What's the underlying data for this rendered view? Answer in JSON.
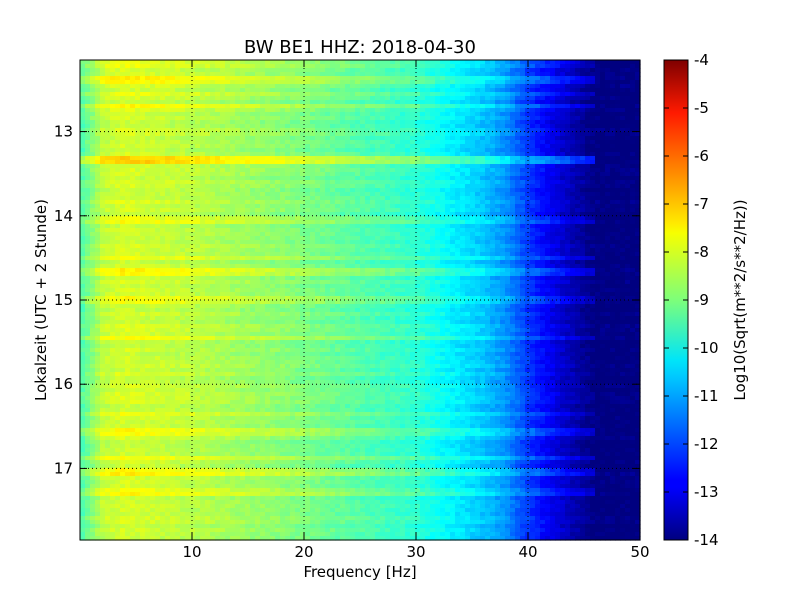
{
  "chart_data": {
    "type": "heatmap",
    "title": "BW BE1 HHZ: 2018-04-30",
    "xlabel": "Frequency [Hz]",
    "ylabel": "Lokalzeit (UTC + 2 Stunde)",
    "xlim": [
      0,
      50
    ],
    "ylim": [
      12.15,
      17.85
    ],
    "y_inverted": true,
    "x_ticks": [
      "10",
      "20",
      "30",
      "40",
      "50"
    ],
    "x_tick_values": [
      10,
      20,
      30,
      40,
      50
    ],
    "y_ticks": [
      "13",
      "14",
      "15",
      "16",
      "17"
    ],
    "y_tick_values": [
      13,
      14,
      15,
      16,
      17
    ],
    "grid": true,
    "colormap": "jet",
    "colorbar": {
      "label": "Log10(Sqrt(m**2/s**2/Hz))",
      "min": -14,
      "max": -4,
      "ticks": [
        "-4",
        "-5",
        "-6",
        "-7",
        "-8",
        "-9",
        "-10",
        "-11",
        "-12",
        "-13",
        "-14"
      ],
      "tick_values": [
        -4,
        -5,
        -6,
        -7,
        -8,
        -9,
        -10,
        -11,
        -12,
        -13,
        -14
      ]
    },
    "spectral_profile": {
      "frequency_hz": [
        0,
        2,
        5,
        10,
        15,
        20,
        25,
        30,
        33,
        36,
        38,
        40,
        42,
        44,
        46,
        48,
        50
      ],
      "level": [
        -8.8,
        -8.0,
        -8.2,
        -8.4,
        -8.7,
        -9.0,
        -9.4,
        -9.8,
        -10.3,
        -10.8,
        -11.3,
        -12.2,
        -12.9,
        -13.5,
        -14.0,
        -14.0,
        -14.0
      ]
    },
    "time_bands": [
      {
        "time": 12.19,
        "extra_db": 0.35
      },
      {
        "time": 12.4,
        "extra_db": 0.5
      },
      {
        "time": 12.55,
        "extra_db": 0.4
      },
      {
        "time": 12.7,
        "extra_db": 0.4
      },
      {
        "time": 13.32,
        "extra_db": 1.0
      },
      {
        "time": 14.05,
        "extra_db": 0.35
      },
      {
        "time": 14.5,
        "extra_db": 0.4
      },
      {
        "time": 14.65,
        "extra_db": 0.45
      },
      {
        "time": 14.99,
        "extra_db": 0.35
      },
      {
        "time": 15.45,
        "extra_db": 0.3
      },
      {
        "time": 16.35,
        "extra_db": 0.35
      },
      {
        "time": 16.58,
        "extra_db": 0.45
      },
      {
        "time": 16.88,
        "extra_db": 0.5
      },
      {
        "time": 17.06,
        "extra_db": 0.5
      },
      {
        "time": 17.27,
        "extra_db": 0.4
      }
    ]
  }
}
